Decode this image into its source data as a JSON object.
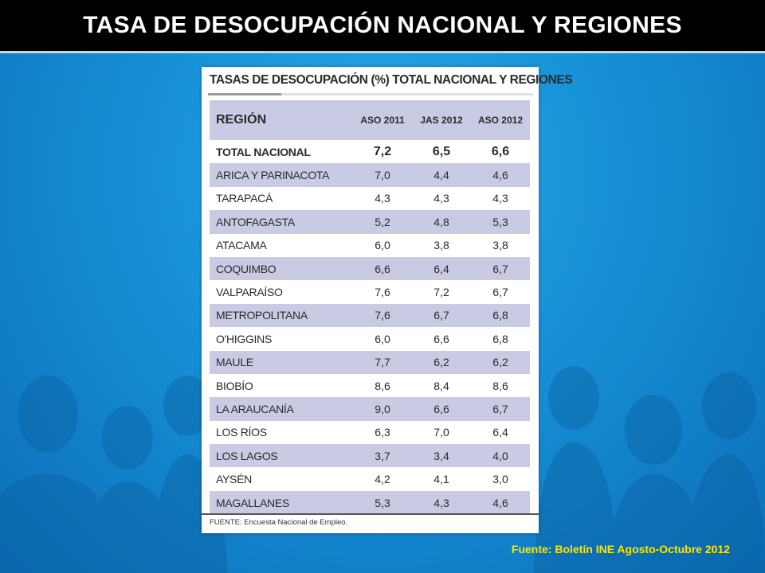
{
  "slide": {
    "title": "TASA DE DESOCUPACIÓN NACIONAL Y REGIONES",
    "source": "Fuente: Boletín INE Agosto-Octubre 2012",
    "colors": {
      "title_bar": "#000000",
      "title_text": "#ffffff",
      "source_text": "#ffe600",
      "background": "#168fd6",
      "table_band": "#c8cbe3"
    }
  },
  "table": {
    "title": "TASAS DE DESOCUPACIÓN (%) TOTAL NACIONAL Y REGIONES",
    "columns": [
      "REGIÓN",
      "ASO 2011",
      "JAS 2012",
      "ASO 2012"
    ],
    "rows": [
      [
        "TOTAL NACIONAL",
        "7,2",
        "6,5",
        "6,6"
      ],
      [
        "ARICA Y PARINACOTA",
        "7,0",
        "4,4",
        "4,6"
      ],
      [
        "TARAPACÁ",
        "4,3",
        "4,3",
        "4,3"
      ],
      [
        "ANTOFAGASTA",
        "5,2",
        "4,8",
        "5,3"
      ],
      [
        "ATACAMA",
        "6,0",
        "3,8",
        "3,8"
      ],
      [
        "COQUIMBO",
        "6,6",
        "6,4",
        "6,7"
      ],
      [
        "VALPARAÍSO",
        "7,6",
        "7,2",
        "6,7"
      ],
      [
        "METROPOLITANA",
        "7,6",
        "6,7",
        "6,8"
      ],
      [
        "O'HIGGINS",
        "6,0",
        "6,6",
        "6,8"
      ],
      [
        "MAULE",
        "7,7",
        "6,2",
        "6,2"
      ],
      [
        "BIOBÍO",
        "8,6",
        "8,4",
        "8,6"
      ],
      [
        "LA ARAUCANÍA",
        "9,0",
        "6,6",
        "6,7"
      ],
      [
        "LOS RÍOS",
        "6,3",
        "7,0",
        "6,4"
      ],
      [
        "LOS LAGOS",
        "3,7",
        "3,4",
        "4,0"
      ],
      [
        "AYSÉN",
        "4,2",
        "4,1",
        "3,0"
      ],
      [
        "MAGALLANES",
        "5,3",
        "4,3",
        "4,6"
      ]
    ],
    "footnote": "FUENTE: Encuesta Nacional de Empleo."
  }
}
